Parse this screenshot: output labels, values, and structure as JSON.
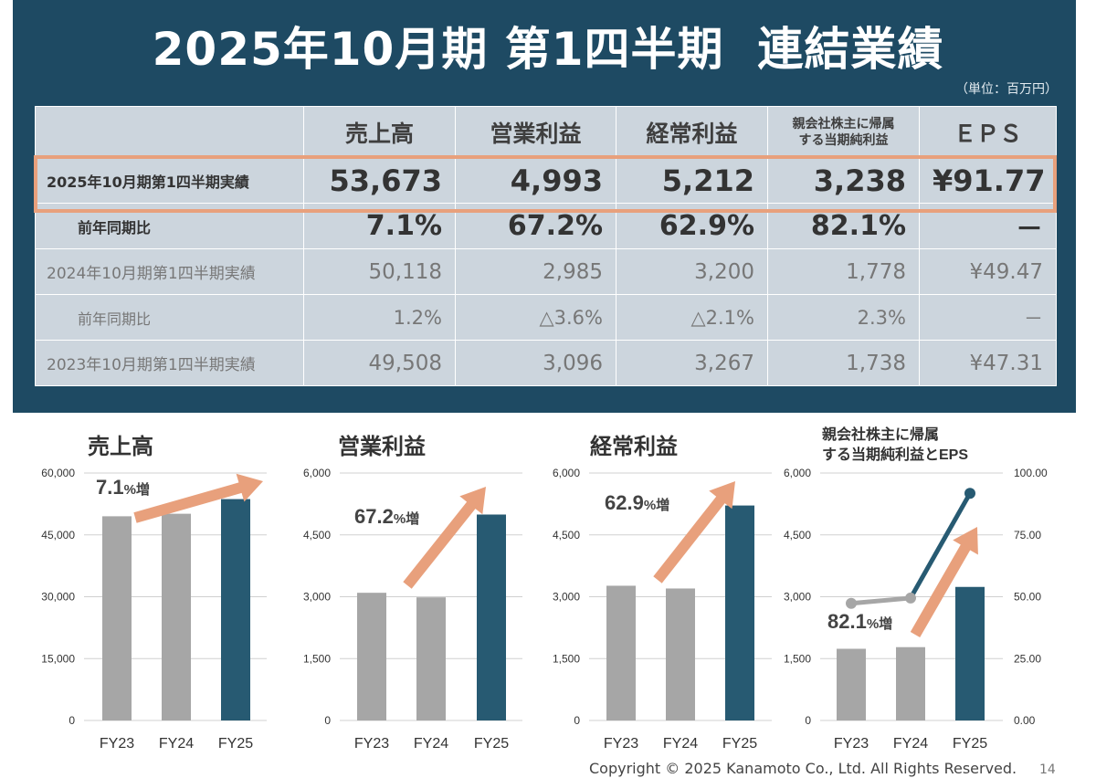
{
  "title": "2025年10月期 第1四半期  連結業績",
  "unit_note": "（単位：百万円）",
  "table": {
    "columns": [
      "",
      "売上高",
      "営業利益",
      "経常利益",
      "親会社株主に帰属\nする当期純利益",
      "ＥＰＳ"
    ],
    "rows": [
      {
        "label": "2025年10月期第1四半期実績",
        "cells": [
          "53,673",
          "4,993",
          "5,212",
          "3,238",
          "¥91.77"
        ]
      },
      {
        "label": "前年同期比",
        "cells": [
          "7.1%",
          "67.2%",
          "62.9%",
          "82.1%",
          "－"
        ]
      },
      {
        "label": "2024年10月期第1四半期実績",
        "cells": [
          "50,118",
          "2,985",
          "3,200",
          "1,778",
          "¥49.47"
        ]
      },
      {
        "label": "前年同期比",
        "cells": [
          "1.2%",
          "△3.6%",
          "△2.1%",
          "2.3%",
          "－"
        ]
      },
      {
        "label": "2023年10月期第1四半期実績",
        "cells": [
          "49,508",
          "3,096",
          "3,267",
          "1,738",
          "¥47.31"
        ]
      }
    ]
  },
  "colors": {
    "panel": "#1e4a63",
    "table_cell": "#ccd5dd",
    "highlight_border": "#e8a07c",
    "bar_past": "#a6a6a6",
    "bar_current": "#275a72",
    "arrow": "#e8a07c"
  },
  "chart_data": [
    {
      "type": "bar",
      "title": "売上高",
      "categories": [
        "FY23",
        "FY24",
        "FY25"
      ],
      "values": [
        49508,
        50118,
        53673
      ],
      "ylim": [
        0,
        60000
      ],
      "yticks": [
        "0",
        "15,000",
        "30,000",
        "45,000",
        "60,000"
      ],
      "annotation": {
        "value": "7.1",
        "suffix": "%増"
      }
    },
    {
      "type": "bar",
      "title": "営業利益",
      "categories": [
        "FY23",
        "FY24",
        "FY25"
      ],
      "values": [
        3096,
        2985,
        4993
      ],
      "ylim": [
        0,
        6000
      ],
      "yticks": [
        "0",
        "1,500",
        "3,000",
        "4,500",
        "6,000"
      ],
      "annotation": {
        "value": "67.2",
        "suffix": "%増"
      }
    },
    {
      "type": "bar",
      "title": "経常利益",
      "categories": [
        "FY23",
        "FY24",
        "FY25"
      ],
      "values": [
        3267,
        3200,
        5212
      ],
      "ylim": [
        0,
        6000
      ],
      "yticks": [
        "0",
        "1,500",
        "3,000",
        "4,500",
        "6,000"
      ],
      "annotation": {
        "value": "62.9",
        "suffix": "%増"
      }
    },
    {
      "type": "bar",
      "title_lines": [
        "親会社株主に帰属",
        "する当期純利益とEPS"
      ],
      "categories": [
        "FY23",
        "FY24",
        "FY25"
      ],
      "values": [
        1738,
        1778,
        3238
      ],
      "ylim": [
        0,
        6000
      ],
      "yticks": [
        "0",
        "1,500",
        "3,000",
        "4,500",
        "6,000"
      ],
      "line_values": [
        47.31,
        49.47,
        91.77
      ],
      "y2lim": [
        0,
        100
      ],
      "y2ticks": [
        "0.00",
        "25.00",
        "50.00",
        "75.00",
        "100.00"
      ],
      "annotation": {
        "value": "82.1",
        "suffix": "%増"
      }
    }
  ],
  "footer": {
    "copyright": "Copyright © 2025 Kanamoto Co., Ltd. All Rights Reserved.",
    "page": "14"
  }
}
